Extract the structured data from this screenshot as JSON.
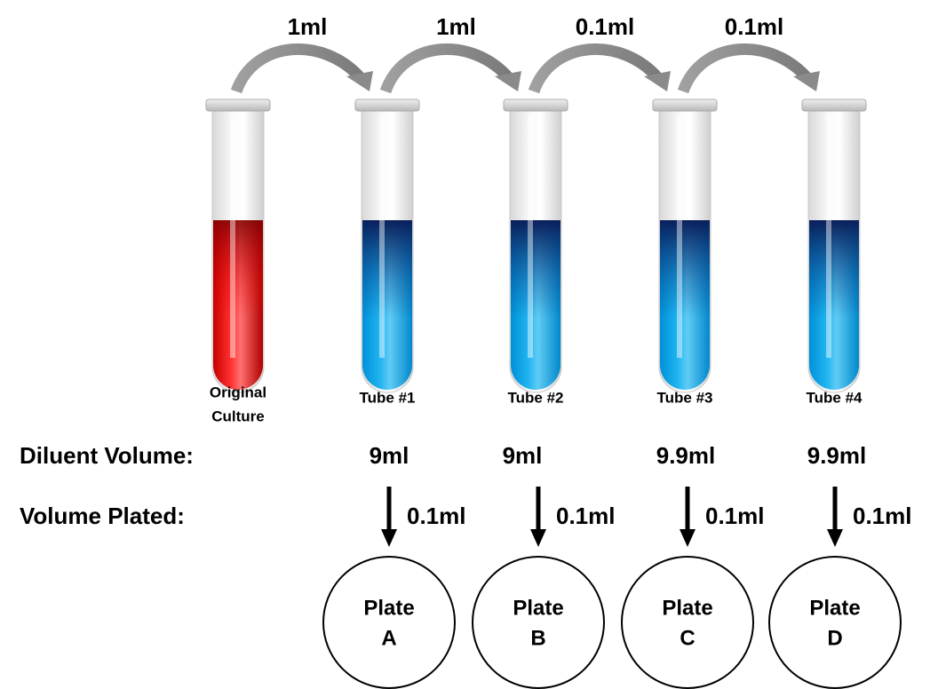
{
  "transfers": [
    "1ml",
    "1ml",
    "0.1ml",
    "0.1ml"
  ],
  "tubes": [
    {
      "label": [
        "Original",
        "Culture"
      ]
    },
    {
      "label": [
        "Tube #1"
      ]
    },
    {
      "label": [
        "Tube #2"
      ]
    },
    {
      "label": [
        "Tube #3"
      ]
    },
    {
      "label": [
        "Tube #4"
      ]
    }
  ],
  "diluent_volume": {
    "label": "Diluent Volume:",
    "values": [
      "9ml",
      "9ml",
      "9.9ml",
      "9.9ml"
    ]
  },
  "volume_plated": {
    "label": "Volume Plated:",
    "values": [
      "0.1ml",
      "0.1ml",
      "0.1ml",
      "0.1ml"
    ]
  },
  "plates": [
    [
      "Plate",
      "A"
    ],
    [
      "Plate",
      "B"
    ],
    [
      "Plate",
      "C"
    ],
    [
      "Plate",
      "D"
    ]
  ]
}
